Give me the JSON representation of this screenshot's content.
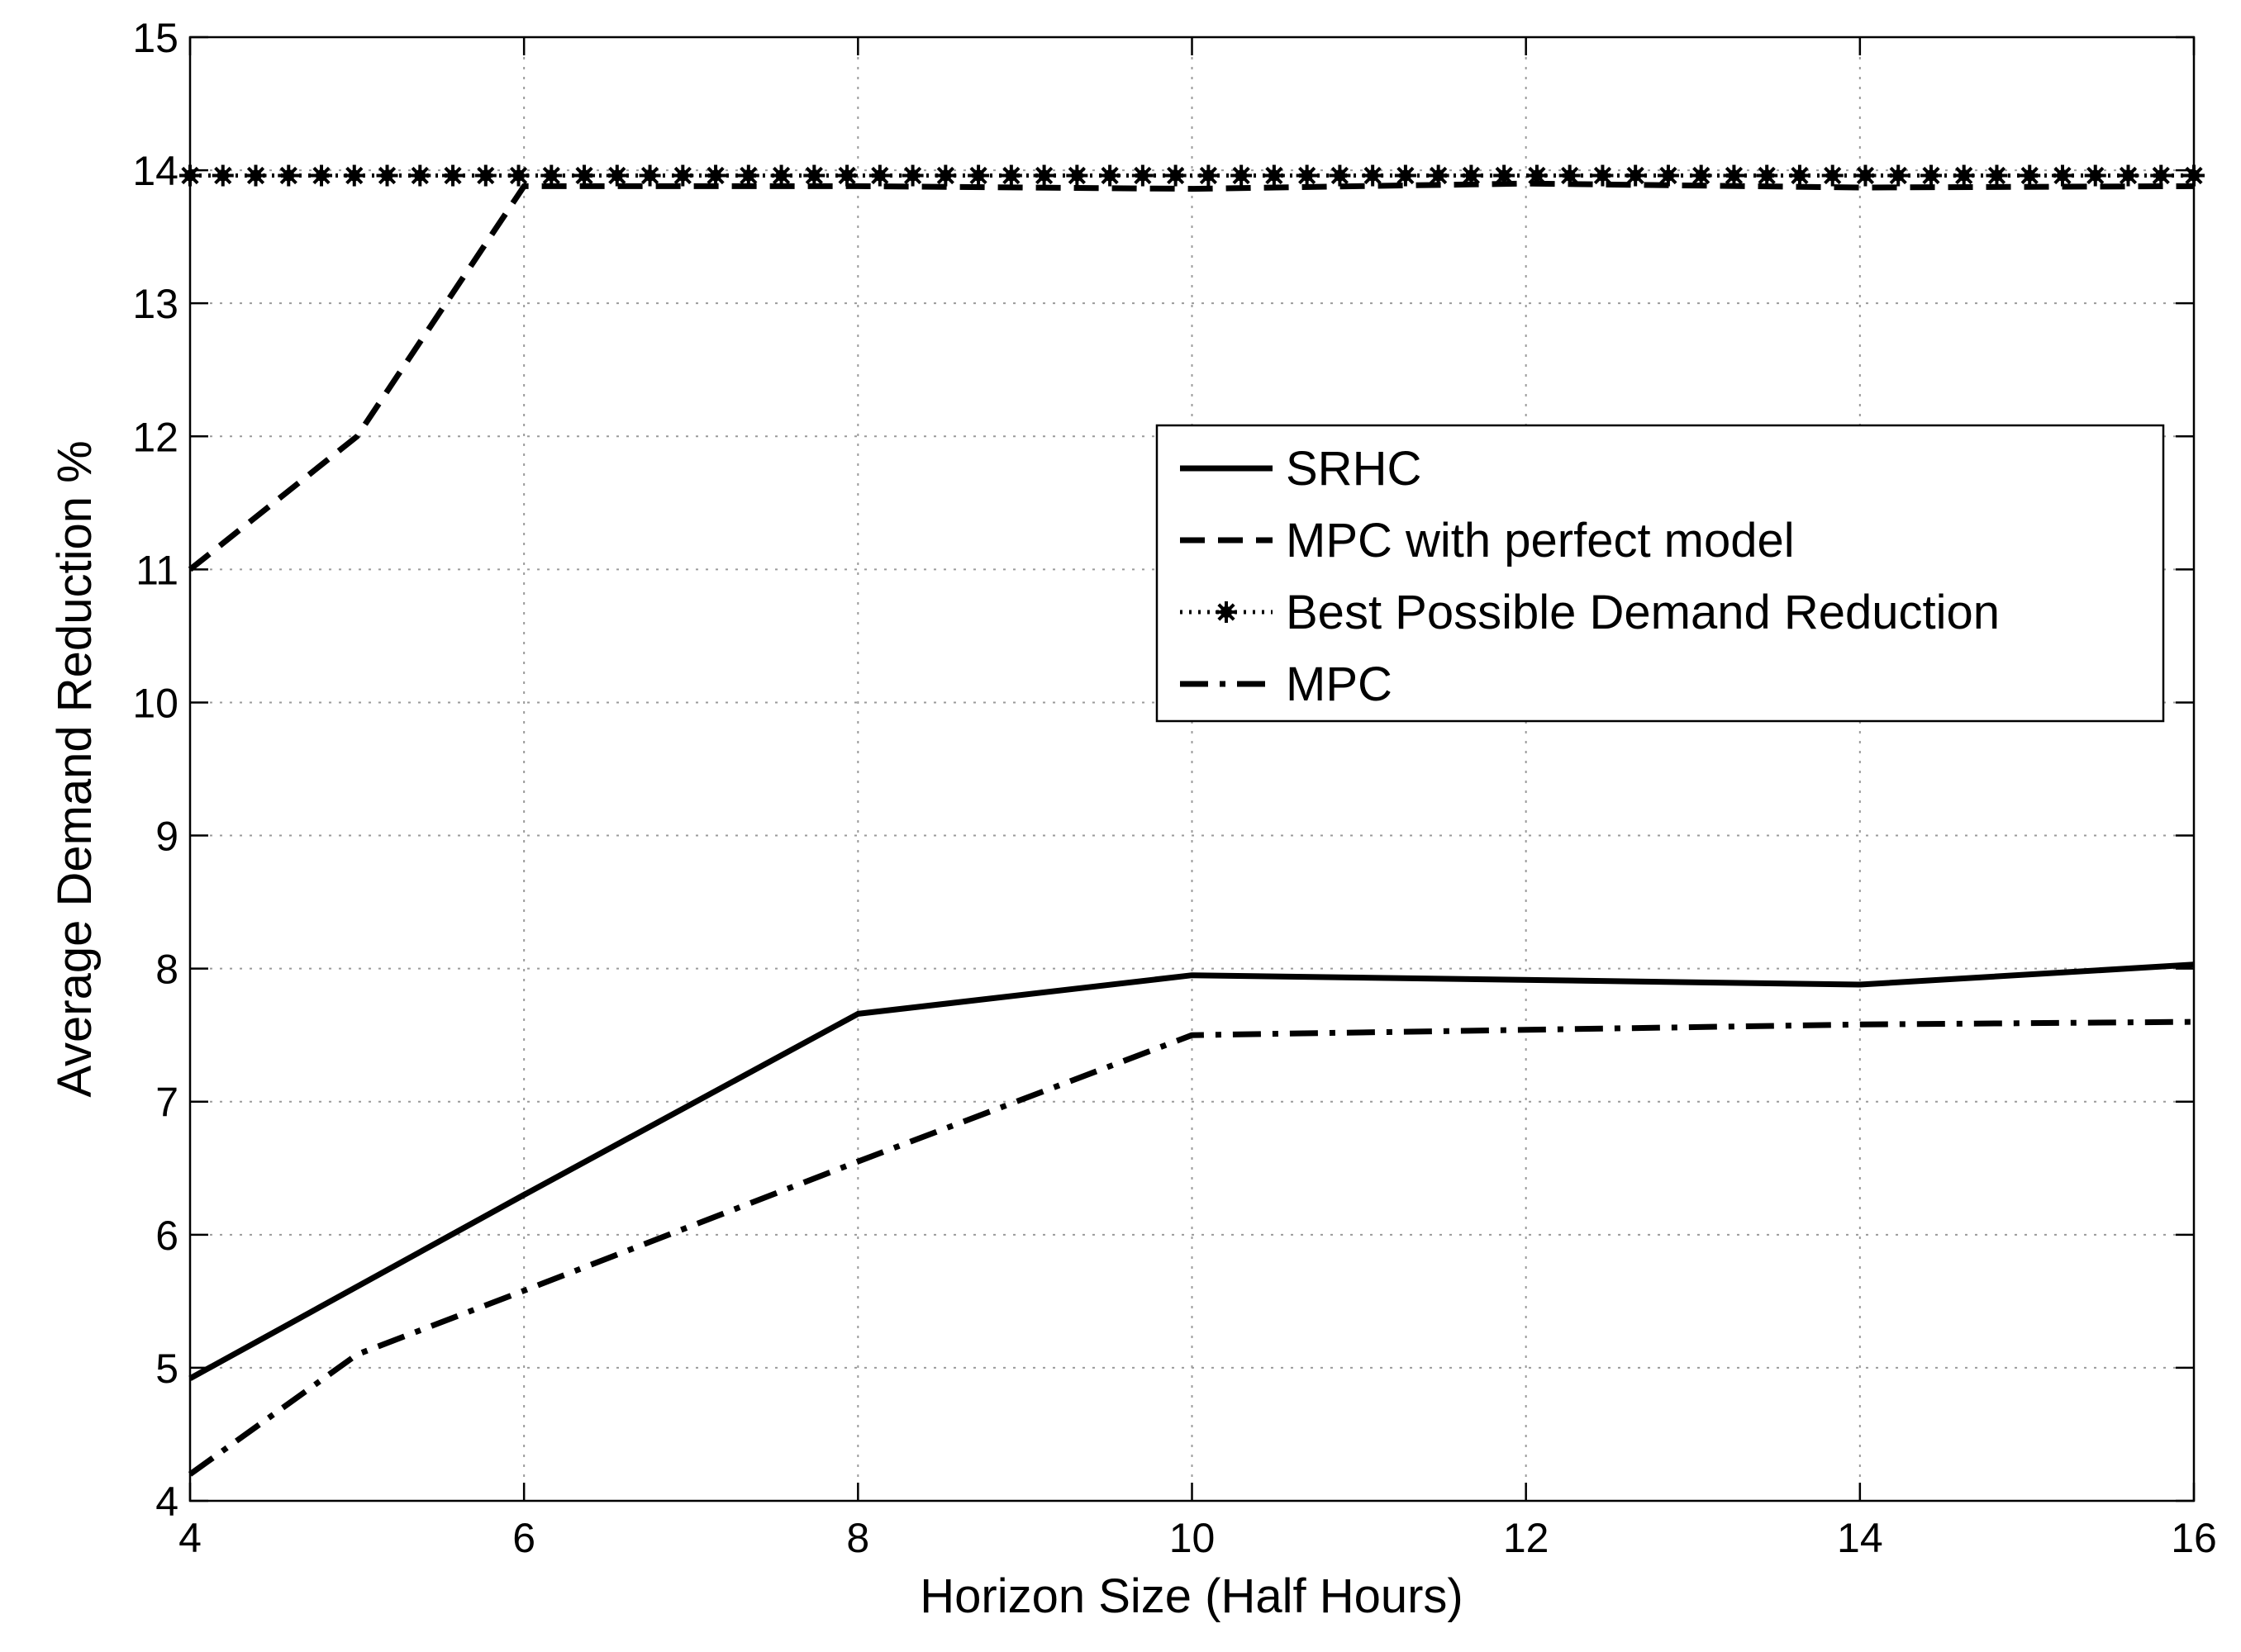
{
  "chart_data": {
    "type": "line",
    "title": "",
    "xlabel": "Horizon Size (Half Hours)",
    "ylabel": "Average Demand Reduction %",
    "xlim": [
      4,
      16
    ],
    "ylim": [
      4,
      15
    ],
    "xticks": [
      4,
      6,
      8,
      10,
      12,
      14,
      16
    ],
    "yticks": [
      4,
      5,
      6,
      7,
      8,
      9,
      10,
      11,
      12,
      13,
      14,
      15
    ],
    "grid": true,
    "legend_position": "upper-right",
    "series": [
      {
        "name": "SRHC",
        "style": "solid",
        "color": "#000000",
        "x": [
          4,
          6,
          8,
          10,
          14,
          16
        ],
        "y": [
          4.92,
          6.3,
          7.66,
          7.95,
          7.88,
          8.03
        ]
      },
      {
        "name": "MPC with perfect model",
        "style": "dashed",
        "color": "#000000",
        "x": [
          4,
          5,
          6,
          8,
          10,
          12,
          14,
          16
        ],
        "y": [
          11.0,
          12.0,
          13.88,
          13.88,
          13.86,
          13.9,
          13.87,
          13.88
        ]
      },
      {
        "name": "Best Possible Demand Reduction",
        "style": "dotted-markers",
        "color": "#000000",
        "x": [
          4,
          16
        ],
        "y": [
          13.96,
          13.96
        ]
      },
      {
        "name": "MPC",
        "style": "dashdot",
        "color": "#000000",
        "x": [
          4,
          5,
          6,
          8,
          10,
          14,
          16
        ],
        "y": [
          4.2,
          5.1,
          5.58,
          6.55,
          7.5,
          7.58,
          7.6
        ]
      }
    ]
  }
}
